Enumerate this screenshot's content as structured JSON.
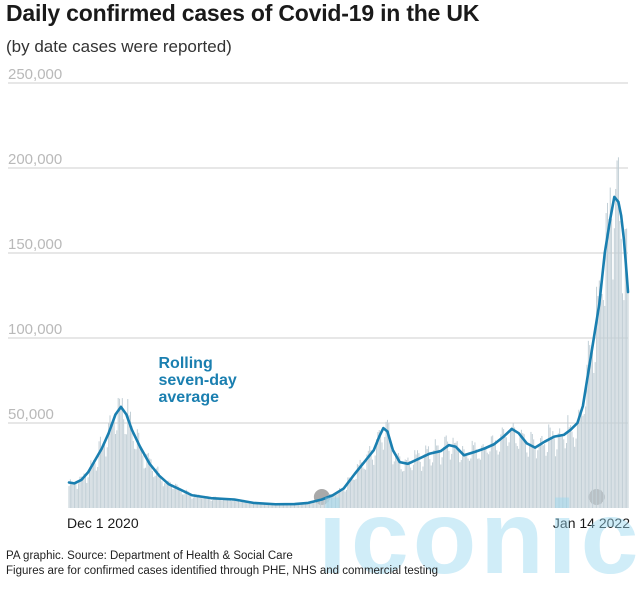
{
  "watermark": "iconic",
  "footer": {
    "source": "PA graphic. Source: Department of Health & Social Care",
    "note": "Figures are for confirmed cases identified through PHE, NHS and commercial testing"
  },
  "colors": {
    "line": "#1a7fb0",
    "bars": "#c2cfd6",
    "grid": "#cfcfcf",
    "markers": "#9a9a9a"
  },
  "chart_data": {
    "type": "bar",
    "title": "Daily confirmed cases of Covid-19 in the UK",
    "subtitle": "(by date cases were reported)",
    "xlabel": "",
    "ylabel": "",
    "ylim": [
      0,
      250000
    ],
    "y_ticks": [
      50000,
      100000,
      150000,
      200000,
      250000
    ],
    "y_tick_labels": [
      "50,000",
      "100,000",
      "150,000",
      "200,000",
      "250,000"
    ],
    "x_range": [
      "2020-12-01",
      "2022-01-14"
    ],
    "x_tick_labels": [
      {
        "date": "2020-12-01",
        "label": "Dec 1 2020"
      },
      {
        "date": "2022-01-14",
        "label": "Jan 14 2022"
      }
    ],
    "grid": true,
    "annotation": {
      "lines": [
        "Rolling",
        "seven-day",
        "average"
      ],
      "date": "2021-01-15"
    },
    "markers": [
      {
        "date": "2021-06-04"
      },
      {
        "date": "2021-12-22"
      }
    ],
    "bars_description": "daily reported cases (light grey-blue bars)",
    "series": [
      {
        "name": "Rolling seven-day average",
        "style": "line",
        "points": [
          [
            "2020-12-01",
            15000
          ],
          [
            "2020-12-05",
            14500
          ],
          [
            "2020-12-10",
            16500
          ],
          [
            "2020-12-15",
            21000
          ],
          [
            "2020-12-20",
            28000
          ],
          [
            "2020-12-25",
            35000
          ],
          [
            "2020-12-30",
            44000
          ],
          [
            "2021-01-04",
            55000
          ],
          [
            "2021-01-08",
            59500
          ],
          [
            "2021-01-12",
            55000
          ],
          [
            "2021-01-16",
            46000
          ],
          [
            "2021-01-22",
            36000
          ],
          [
            "2021-01-29",
            26000
          ],
          [
            "2021-02-05",
            19000
          ],
          [
            "2021-02-12",
            14000
          ],
          [
            "2021-02-20",
            11000
          ],
          [
            "2021-03-01",
            7500
          ],
          [
            "2021-03-15",
            5800
          ],
          [
            "2021-04-01",
            5000
          ],
          [
            "2021-04-15",
            3000
          ],
          [
            "2021-05-01",
            2200
          ],
          [
            "2021-05-15",
            2300
          ],
          [
            "2021-05-25",
            3000
          ],
          [
            "2021-06-04",
            5000
          ],
          [
            "2021-06-12",
            7500
          ],
          [
            "2021-06-20",
            11500
          ],
          [
            "2021-06-28",
            20000
          ],
          [
            "2021-07-06",
            28000
          ],
          [
            "2021-07-12",
            34000
          ],
          [
            "2021-07-16",
            42000
          ],
          [
            "2021-07-19",
            47000
          ],
          [
            "2021-07-22",
            45000
          ],
          [
            "2021-07-26",
            34000
          ],
          [
            "2021-07-31",
            27000
          ],
          [
            "2021-08-06",
            26000
          ],
          [
            "2021-08-14",
            29000
          ],
          [
            "2021-08-22",
            32000
          ],
          [
            "2021-08-30",
            33500
          ],
          [
            "2021-09-05",
            37000
          ],
          [
            "2021-09-10",
            36000
          ],
          [
            "2021-09-16",
            31000
          ],
          [
            "2021-09-24",
            33000
          ],
          [
            "2021-10-01",
            35000
          ],
          [
            "2021-10-08",
            37500
          ],
          [
            "2021-10-15",
            42000
          ],
          [
            "2021-10-21",
            46500
          ],
          [
            "2021-10-26",
            44000
          ],
          [
            "2021-11-01",
            38000
          ],
          [
            "2021-11-07",
            35500
          ],
          [
            "2021-11-14",
            39000
          ],
          [
            "2021-11-21",
            42000
          ],
          [
            "2021-11-28",
            43000
          ],
          [
            "2021-12-03",
            46000
          ],
          [
            "2021-12-08",
            50000
          ],
          [
            "2021-12-12",
            60000
          ],
          [
            "2021-12-16",
            80000
          ],
          [
            "2021-12-20",
            100000
          ],
          [
            "2021-12-24",
            120000
          ],
          [
            "2021-12-28",
            150000
          ],
          [
            "2022-01-01",
            170000
          ],
          [
            "2022-01-04",
            183000
          ],
          [
            "2022-01-07",
            180000
          ],
          [
            "2022-01-09",
            172000
          ],
          [
            "2022-01-11",
            158000
          ],
          [
            "2022-01-13",
            138000
          ],
          [
            "2022-01-14",
            127000
          ]
        ]
      }
    ]
  }
}
